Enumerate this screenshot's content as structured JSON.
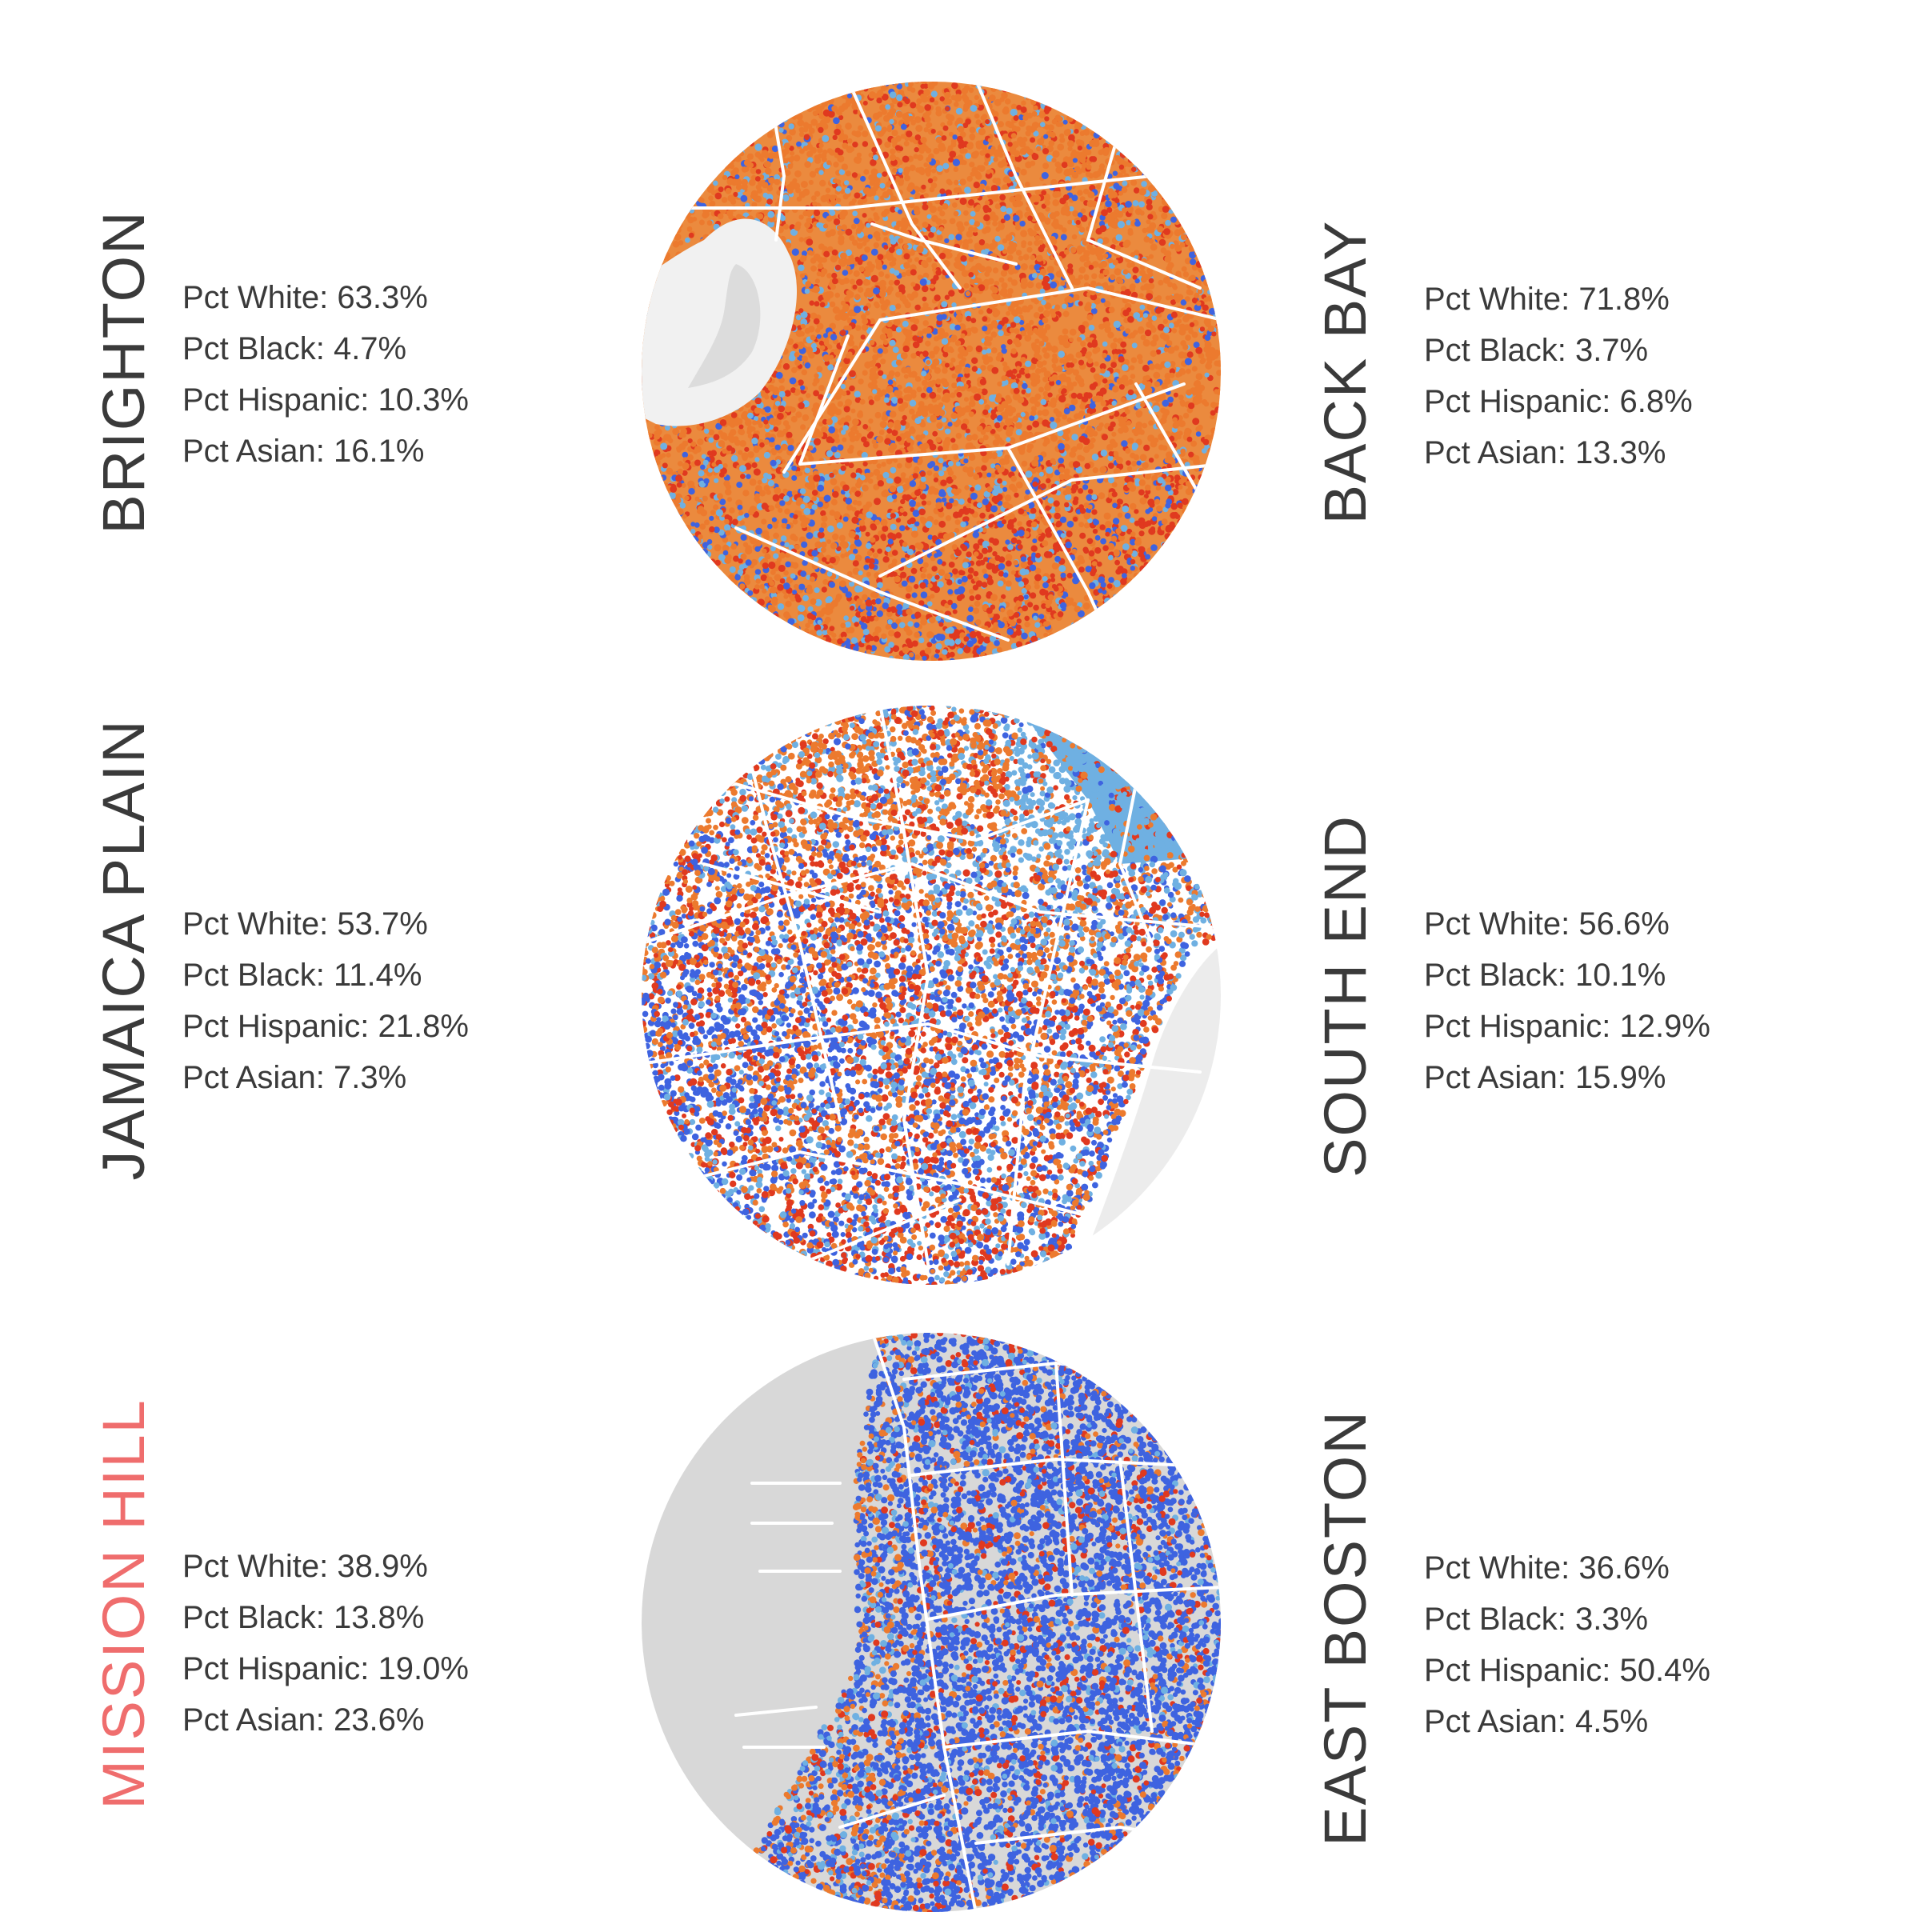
{
  "colors": {
    "white": "#ec7a2e",
    "black": "#e0391f",
    "hispanic": "#3e63e0",
    "asian": "#6fb0e2",
    "road": "#ffffff",
    "water": "#dcdcdc",
    "park": "#f1f1f1",
    "label_default": "#3a3a3a",
    "label_highlight": "#ef6d6d"
  },
  "panels": [
    {
      "left": {
        "name": "BRIGHTON",
        "highlight": false,
        "stats": [
          {
            "label": "Pct White: 63.3%",
            "pct": 63.3
          },
          {
            "label": "Pct Black: 4.7%",
            "pct": 4.7
          },
          {
            "label": "Pct Hispanic: 10.3%",
            "pct": 10.3
          },
          {
            "label": "Pct Asian: 16.1%",
            "pct": 16.1
          }
        ]
      },
      "right": {
        "name": "BACK BAY",
        "highlight": false,
        "stats": [
          {
            "label": "Pct White: 71.8%",
            "pct": 71.8
          },
          {
            "label": "Pct Black: 3.7%",
            "pct": 3.7
          },
          {
            "label": "Pct Hispanic: 6.8%",
            "pct": 6.8
          },
          {
            "label": "Pct Asian: 13.3%",
            "pct": 13.3
          }
        ]
      }
    },
    {
      "left": {
        "name": "JAMAICA PLAIN",
        "highlight": false,
        "stats": [
          {
            "label": "Pct White: 53.7%",
            "pct": 53.7
          },
          {
            "label": "Pct Black: 11.4%",
            "pct": 11.4
          },
          {
            "label": "Pct Hispanic: 21.8%",
            "pct": 21.8
          },
          {
            "label": "Pct Asian: 7.3%",
            "pct": 7.3
          }
        ]
      },
      "right": {
        "name": "SOUTH END",
        "highlight": false,
        "stats": [
          {
            "label": "Pct White: 56.6%",
            "pct": 56.6
          },
          {
            "label": "Pct Black: 10.1%",
            "pct": 10.1
          },
          {
            "label": "Pct Hispanic: 12.9%",
            "pct": 12.9
          },
          {
            "label": "Pct Asian: 15.9%",
            "pct": 15.9
          }
        ]
      }
    },
    {
      "left": {
        "name": "MISSION HILL",
        "highlight": true,
        "stats": [
          {
            "label": "Pct White: 38.9%",
            "pct": 38.9
          },
          {
            "label": "Pct Black: 13.8%",
            "pct": 13.8
          },
          {
            "label": "Pct Hispanic: 19.0%",
            "pct": 19.0
          },
          {
            "label": "Pct Asian: 23.6%",
            "pct": 23.6
          }
        ]
      },
      "right": {
        "name": "EAST BOSTON",
        "highlight": false,
        "stats": [
          {
            "label": "Pct White: 36.6%",
            "pct": 36.6
          },
          {
            "label": "Pct Black: 3.3%",
            "pct": 3.3
          },
          {
            "label": "Pct Hispanic: 50.4%",
            "pct": 50.4
          },
          {
            "label": "Pct Asian: 4.5%",
            "pct": 4.5
          }
        ]
      }
    }
  ]
}
